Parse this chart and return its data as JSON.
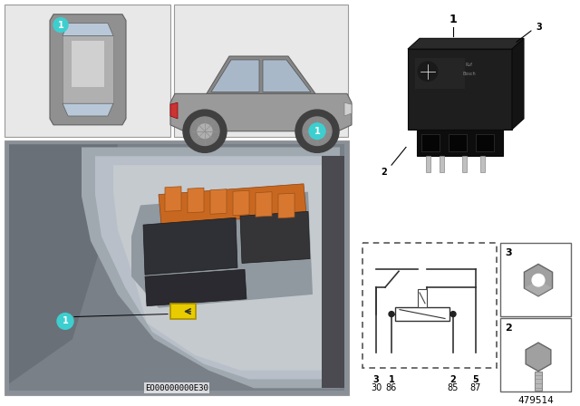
{
  "bg_color": "#ffffff",
  "panel_bg": "#e8e8e8",
  "callout_color": "#3dcfcf",
  "fig_number": "479514",
  "eo_code": "EO00000000E30",
  "circuit_pin_labels_top": [
    "3",
    "1",
    "2",
    "5"
  ],
  "circuit_pin_labels_bot": [
    "30",
    "86",
    "85",
    "87"
  ],
  "main_photo_bg": "#8a9098",
  "trunk_silver": "#b8bcc4",
  "trunk_inner": "#c8ccd4",
  "fuse_dark": "#2a2a2a",
  "fuse_orange": "#c86820",
  "relay_yellow": "#e8cc00",
  "relay_dark": "#1a1a1a",
  "relay_body": "#252525",
  "border_gray": "#999999",
  "line_color": "#333333"
}
